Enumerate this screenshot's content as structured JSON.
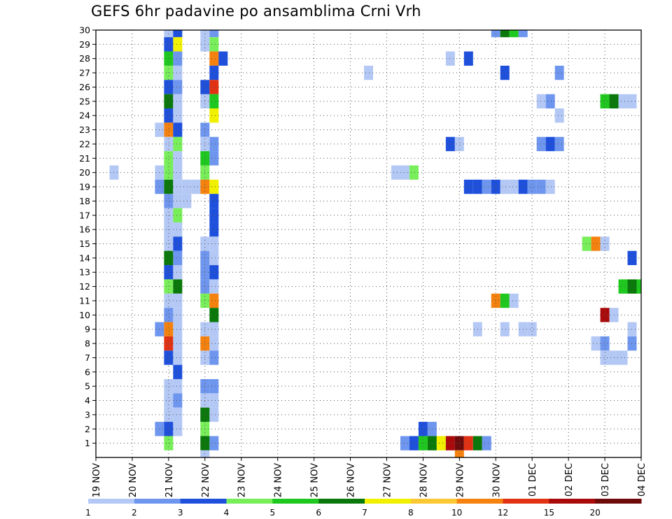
{
  "chart_data": {
    "type": "heatmap",
    "title": "GEFS 6hr padavine po ansamblima Crni Vrh",
    "x_ticks": [
      "19 NOV",
      "20 NOV",
      "21 NOV",
      "22 NOV",
      "23 NOV",
      "24 NOV",
      "25 NOV",
      "26 NOV",
      "27 NOV",
      "28 NOV",
      "29 NOV",
      "30 NOV",
      "01 DEC",
      "02 DEC",
      "03 DEC",
      "04 DEC"
    ],
    "x_range": [
      0,
      60
    ],
    "x_unit": "6-hour steps from 19 NOV 00",
    "y_ticks": [
      "1",
      "2",
      "3",
      "4",
      "5",
      "6",
      "7",
      "8",
      "9",
      "10",
      "11",
      "12",
      "13",
      "14",
      "15",
      "16",
      "17",
      "18",
      "19",
      "20",
      "21",
      "22",
      "23",
      "24",
      "25",
      "26",
      "27",
      "28",
      "29",
      "30"
    ],
    "y_range": [
      0,
      30
    ],
    "grid": true,
    "colorbar": {
      "labels": [
        "1",
        "2",
        "3",
        "4",
        "5",
        "6",
        "7",
        "8",
        "10",
        "12",
        "15",
        "20"
      ],
      "colors": [
        "#b4c8f5",
        "#6e96ee",
        "#1e50dc",
        "#78ee5a",
        "#1ec81e",
        "#0a780a",
        "#f0f000",
        "#fac832",
        "#f5820f",
        "#e13214",
        "#aa0a0a",
        "#6e0a0a"
      ]
    },
    "cells": [
      [
        8,
        30,
        1
      ],
      [
        8,
        29,
        3
      ],
      [
        8,
        28,
        5
      ],
      [
        8,
        27,
        4
      ],
      [
        8,
        26,
        3
      ],
      [
        8,
        25,
        6
      ],
      [
        8,
        24,
        3
      ],
      [
        8,
        23,
        9
      ],
      [
        8,
        22,
        1
      ],
      [
        8,
        21,
        4
      ],
      [
        8,
        20,
        4
      ],
      [
        8,
        19,
        6
      ],
      [
        8,
        18,
        2
      ],
      [
        8,
        17,
        1
      ],
      [
        8,
        16,
        1
      ],
      [
        8,
        15,
        1
      ],
      [
        8,
        14,
        6
      ],
      [
        8,
        13,
        3
      ],
      [
        8,
        12,
        4
      ],
      [
        8,
        11,
        1
      ],
      [
        8,
        10,
        2
      ],
      [
        8,
        9,
        9
      ],
      [
        8,
        8,
        10
      ],
      [
        8,
        7,
        3
      ],
      [
        8,
        5,
        1
      ],
      [
        8,
        4,
        1
      ],
      [
        8,
        3,
        1
      ],
      [
        8,
        2,
        3
      ],
      [
        8,
        1,
        4
      ],
      [
        9,
        30,
        3
      ],
      [
        9,
        29,
        7
      ],
      [
        9,
        28,
        2
      ],
      [
        9,
        27,
        1
      ],
      [
        9,
        26,
        2
      ],
      [
        9,
        25,
        1
      ],
      [
        9,
        24,
        1
      ],
      [
        9,
        23,
        3
      ],
      [
        9,
        22,
        4
      ],
      [
        9,
        21,
        1
      ],
      [
        9,
        20,
        1
      ],
      [
        9,
        19,
        1
      ],
      [
        9,
        18,
        1
      ],
      [
        9,
        17,
        4
      ],
      [
        9,
        16,
        1
      ],
      [
        9,
        15,
        3
      ],
      [
        9,
        14,
        2
      ],
      [
        9,
        13,
        1
      ],
      [
        9,
        12,
        6
      ],
      [
        9,
        11,
        1
      ],
      [
        9,
        10,
        1
      ],
      [
        9,
        9,
        1
      ],
      [
        9,
        8,
        1
      ],
      [
        9,
        7,
        1
      ],
      [
        9,
        6,
        3
      ],
      [
        9,
        5,
        1
      ],
      [
        9,
        4,
        2
      ],
      [
        9,
        3,
        1
      ],
      [
        9,
        2,
        1
      ],
      [
        7,
        23,
        1
      ],
      [
        7,
        20,
        1
      ],
      [
        7,
        19,
        2
      ],
      [
        7,
        9,
        2
      ],
      [
        7,
        2,
        2
      ],
      [
        2,
        20,
        1
      ],
      [
        10,
        19,
        1
      ],
      [
        10,
        18,
        1
      ],
      [
        11,
        19,
        1
      ],
      [
        12,
        25,
        1
      ],
      [
        12,
        23,
        2
      ],
      [
        12,
        20,
        4
      ],
      [
        12,
        19,
        9
      ],
      [
        12,
        12,
        2
      ],
      [
        12,
        13,
        2
      ],
      [
        12,
        14,
        2
      ],
      [
        12,
        15,
        1
      ],
      [
        12,
        11,
        4
      ],
      [
        12,
        7,
        1
      ],
      [
        12,
        9,
        1
      ],
      [
        12,
        5,
        2
      ],
      [
        12,
        4,
        1
      ],
      [
        12,
        3,
        1
      ],
      [
        13,
        30,
        2
      ],
      [
        13,
        29,
        4
      ],
      [
        13,
        28,
        9
      ],
      [
        13,
        27,
        3
      ],
      [
        13,
        26,
        10
      ],
      [
        13,
        25,
        5
      ],
      [
        13,
        24,
        7
      ],
      [
        13,
        22,
        2
      ],
      [
        13,
        21,
        2
      ],
      [
        13,
        19,
        7
      ],
      [
        13,
        18,
        3
      ],
      [
        13,
        17,
        3
      ],
      [
        13,
        16,
        3
      ],
      [
        13,
        15,
        1
      ],
      [
        13,
        14,
        1
      ],
      [
        13,
        13,
        3
      ],
      [
        13,
        12,
        1
      ],
      [
        13,
        11,
        9
      ],
      [
        13,
        10,
        6
      ],
      [
        13,
        9,
        1
      ],
      [
        13,
        8,
        1
      ],
      [
        13,
        7,
        2
      ],
      [
        13,
        5,
        2
      ],
      [
        13,
        4,
        1
      ],
      [
        13,
        3,
        1
      ],
      [
        13,
        1,
        2
      ],
      [
        14,
        28,
        3
      ],
      [
        12,
        26,
        3
      ],
      [
        12,
        30,
        1
      ],
      [
        12,
        29,
        1
      ],
      [
        12,
        22,
        1
      ],
      [
        12,
        21,
        5
      ],
      [
        12,
        8,
        9
      ],
      [
        12,
        3,
        6
      ],
      [
        12,
        2,
        4
      ],
      [
        12,
        1,
        6
      ],
      [
        12,
        0,
        1
      ],
      [
        30,
        27,
        1
      ],
      [
        33,
        20,
        1
      ],
      [
        34,
        20,
        1
      ],
      [
        35,
        20,
        4
      ],
      [
        34,
        1,
        2
      ],
      [
        35,
        1,
        3
      ],
      [
        36,
        2,
        3
      ],
      [
        37,
        2,
        2
      ],
      [
        36,
        1,
        5
      ],
      [
        37,
        1,
        6
      ],
      [
        38,
        1,
        7
      ],
      [
        39,
        1,
        11
      ],
      [
        40,
        1,
        12
      ],
      [
        41,
        1,
        10
      ],
      [
        42,
        1,
        6
      ],
      [
        43,
        1,
        2
      ],
      [
        40,
        0,
        9
      ],
      [
        39,
        28,
        1
      ],
      [
        41,
        28,
        3
      ],
      [
        39,
        22,
        3
      ],
      [
        40,
        22,
        1
      ],
      [
        41,
        19,
        3
      ],
      [
        42,
        19,
        3
      ],
      [
        43,
        19,
        2
      ],
      [
        42,
        9,
        1
      ],
      [
        44,
        30,
        2
      ],
      [
        45,
        30,
        6
      ],
      [
        46,
        30,
        5
      ],
      [
        47,
        30,
        2
      ],
      [
        44,
        19,
        3
      ],
      [
        45,
        19,
        1
      ],
      [
        46,
        19,
        1
      ],
      [
        47,
        19,
        3
      ],
      [
        48,
        19,
        2
      ],
      [
        49,
        19,
        2
      ],
      [
        50,
        19,
        1
      ],
      [
        45,
        27,
        3
      ],
      [
        44,
        11,
        9
      ],
      [
        45,
        11,
        5
      ],
      [
        46,
        11,
        1
      ],
      [
        45,
        9,
        1
      ],
      [
        47,
        9,
        1
      ],
      [
        48,
        9,
        1
      ],
      [
        49,
        25,
        1
      ],
      [
        50,
        25,
        2
      ],
      [
        49,
        22,
        2
      ],
      [
        50,
        22,
        3
      ],
      [
        51,
        22,
        2
      ],
      [
        51,
        24,
        1
      ],
      [
        51,
        27,
        2
      ],
      [
        56,
        25,
        5
      ],
      [
        57,
        25,
        6
      ],
      [
        58,
        25,
        1
      ],
      [
        59,
        25,
        1
      ],
      [
        54,
        15,
        4
      ],
      [
        55,
        15,
        9
      ],
      [
        56,
        15,
        1
      ],
      [
        59,
        14,
        3
      ],
      [
        58,
        12,
        5
      ],
      [
        59,
        12,
        6
      ],
      [
        60,
        12,
        5
      ],
      [
        56,
        10,
        11
      ],
      [
        57,
        10,
        1
      ],
      [
        55,
        8,
        1
      ],
      [
        56,
        8,
        2
      ],
      [
        59,
        8,
        2
      ],
      [
        59,
        9,
        1
      ],
      [
        56,
        7,
        1
      ],
      [
        57,
        7,
        1
      ],
      [
        58,
        7,
        1
      ]
    ]
  }
}
